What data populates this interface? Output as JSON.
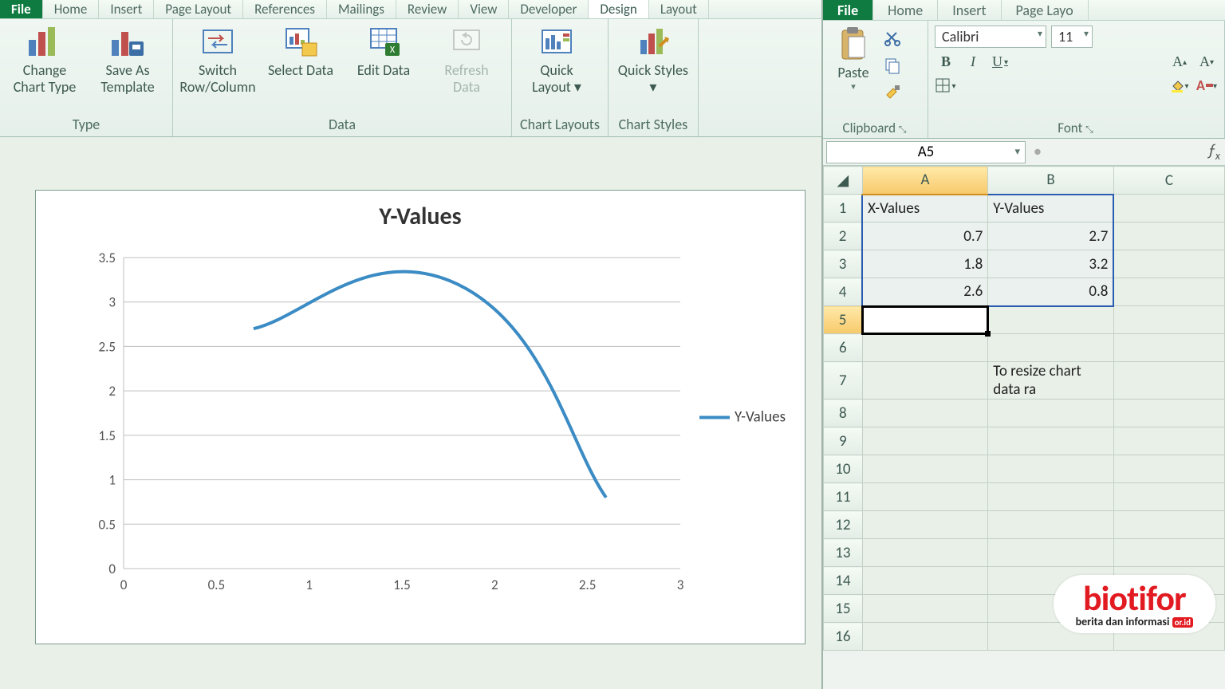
{
  "left": {
    "tabs": [
      "File",
      "Home",
      "Insert",
      "Page Layout",
      "References",
      "Mailings",
      "Review",
      "View",
      "Developer",
      "Design",
      "Layout"
    ],
    "active_tab": "Design",
    "groups": {
      "type": {
        "label": "Type",
        "btns": [
          {
            "name": "change-chart-type",
            "label": "Change Chart Type"
          },
          {
            "name": "save-as-template",
            "label": "Save As Template"
          }
        ]
      },
      "data": {
        "label": "Data",
        "btns": [
          {
            "name": "switch-row-column",
            "label": "Switch Row/Column"
          },
          {
            "name": "select-data",
            "label": "Select Data"
          },
          {
            "name": "edit-data",
            "label": "Edit Data"
          },
          {
            "name": "refresh-data",
            "label": "Refresh Data",
            "disabled": true
          }
        ]
      },
      "layouts": {
        "label": "Chart Layouts",
        "btn": {
          "name": "quick-layout",
          "label": "Quick Layout ▾"
        }
      },
      "styles": {
        "label": "Chart Styles",
        "btn": {
          "name": "quick-styles",
          "label": "Quick Styles ▾"
        }
      }
    }
  },
  "chart": {
    "type": "line-smooth",
    "title": "Y-Values",
    "title_fontsize": 30,
    "series_name": "Y-Values",
    "series_color": "#3b8bc4",
    "line_width": 4,
    "background_color": "#ffffff",
    "grid_color": "#bfbfbf",
    "xlim": [
      0,
      3
    ],
    "xtick_step": 0.5,
    "ylim": [
      0,
      3.5
    ],
    "ytick_step": 0.5,
    "x_ticks": [
      "0",
      "0.5",
      "1",
      "1.5",
      "2",
      "2.5",
      "3"
    ],
    "y_ticks": [
      "0",
      "0.5",
      "1",
      "1.5",
      "2",
      "2.5",
      "3",
      "3.5"
    ],
    "points_x": [
      0.7,
      1.8,
      2.6
    ],
    "points_y": [
      2.7,
      3.2,
      0.8
    ],
    "label_fontsize": 17
  },
  "right": {
    "tabs": [
      "File",
      "Home",
      "Insert",
      "Page Layo"
    ],
    "clipboard_label": "Clipboard",
    "paste_label": "Paste",
    "font_label": "Font",
    "font_name": "Calibri",
    "font_size": "11",
    "namebox": "A5",
    "columns": [
      "A",
      "B",
      "C"
    ],
    "rows": [
      "1",
      "2",
      "3",
      "4",
      "5",
      "6",
      "7",
      "8",
      "9",
      "10",
      "11",
      "12",
      "13",
      "14",
      "15",
      "16"
    ],
    "cells": {
      "A1": "X-Values",
      "B1": "Y-Values",
      "A2": "0.7",
      "B2": "2.7",
      "A3": "1.8",
      "B3": "3.2",
      "A4": "2.6",
      "B4": "0.8",
      "B7": "To resize chart data ra"
    },
    "selected_col": "A",
    "selected_row": "5",
    "data_range_outline": {
      "from": "A1",
      "to": "B4"
    }
  },
  "watermark": {
    "line1": "biotifor",
    "line2_a": "berita dan informasi",
    "line2_b": "or.id"
  }
}
